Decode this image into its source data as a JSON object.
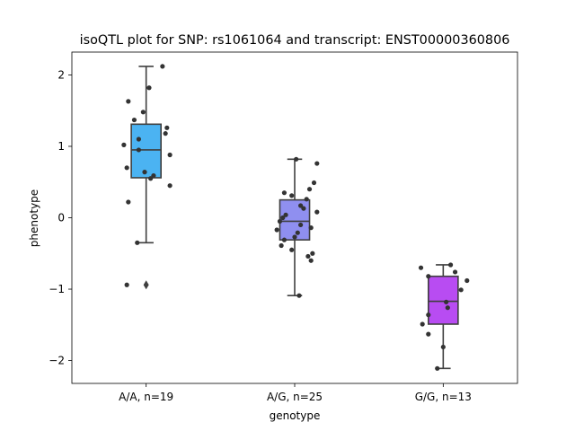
{
  "chart_data": {
    "type": "box",
    "title": "isoQTL plot for SNP: rs1061064 and transcript: ENST00000360806",
    "xlabel": "genotype",
    "ylabel": "phenotype",
    "ylim": [
      -2.32,
      2.32
    ],
    "yticks": [
      2,
      1,
      0,
      -1,
      -2
    ],
    "ytick_labels": [
      "2",
      "1",
      "0",
      "−1",
      "−2"
    ],
    "grid": false,
    "categories": [
      "A/A, n=19",
      "A/G, n=25",
      "G/G, n=13"
    ],
    "groups": [
      {
        "label": "A/A, n=19",
        "color": "#4bb3f2",
        "box": {
          "q1": 0.56,
          "median": 0.95,
          "q3": 1.31,
          "whisker_low": -0.35,
          "whisker_high": 2.12
        },
        "outliers": [
          -0.94
        ],
        "points": [
          {
            "dx": 0.11,
            "y": 2.12
          },
          {
            "dx": 0.02,
            "y": 1.82
          },
          {
            "dx": -0.12,
            "y": 1.63
          },
          {
            "dx": -0.02,
            "y": 1.48
          },
          {
            "dx": -0.08,
            "y": 1.37
          },
          {
            "dx": 0.14,
            "y": 1.26
          },
          {
            "dx": 0.13,
            "y": 1.18
          },
          {
            "dx": -0.05,
            "y": 1.1
          },
          {
            "dx": -0.15,
            "y": 1.02
          },
          {
            "dx": -0.05,
            "y": 0.95
          },
          {
            "dx": 0.16,
            "y": 0.88
          },
          {
            "dx": -0.13,
            "y": 0.7
          },
          {
            "dx": -0.01,
            "y": 0.64
          },
          {
            "dx": 0.05,
            "y": 0.59
          },
          {
            "dx": 0.03,
            "y": 0.55
          },
          {
            "dx": 0.16,
            "y": 0.45
          },
          {
            "dx": -0.12,
            "y": 0.22
          },
          {
            "dx": -0.06,
            "y": -0.35
          },
          {
            "dx": -0.13,
            "y": -0.94
          }
        ]
      },
      {
        "label": "A/G, n=25",
        "color": "#8f8ff0",
        "box": {
          "q1": -0.31,
          "median": -0.05,
          "q3": 0.25,
          "whisker_low": -1.09,
          "whisker_high": 0.82
        },
        "outliers": [],
        "points": [
          {
            "dx": 0.01,
            "y": 0.82
          },
          {
            "dx": 0.15,
            "y": 0.76
          },
          {
            "dx": 0.13,
            "y": 0.49
          },
          {
            "dx": 0.1,
            "y": 0.4
          },
          {
            "dx": -0.07,
            "y": 0.35
          },
          {
            "dx": -0.02,
            "y": 0.31
          },
          {
            "dx": 0.08,
            "y": 0.26
          },
          {
            "dx": 0.04,
            "y": 0.17
          },
          {
            "dx": 0.06,
            "y": 0.13
          },
          {
            "dx": 0.15,
            "y": 0.08
          },
          {
            "dx": -0.06,
            "y": 0.04
          },
          {
            "dx": -0.08,
            "y": 0.0
          },
          {
            "dx": -0.1,
            "y": -0.05
          },
          {
            "dx": 0.04,
            "y": -0.1
          },
          {
            "dx": -0.12,
            "y": -0.17
          },
          {
            "dx": 0.11,
            "y": -0.14
          },
          {
            "dx": 0.02,
            "y": -0.21
          },
          {
            "dx": 0.0,
            "y": -0.27
          },
          {
            "dx": -0.07,
            "y": -0.31
          },
          {
            "dx": -0.09,
            "y": -0.39
          },
          {
            "dx": -0.02,
            "y": -0.45
          },
          {
            "dx": 0.12,
            "y": -0.5
          },
          {
            "dx": 0.09,
            "y": -0.54
          },
          {
            "dx": 0.11,
            "y": -0.6
          },
          {
            "dx": 0.03,
            "y": -1.09
          }
        ]
      },
      {
        "label": "G/G, n=13",
        "color": "#b84cf2",
        "box": {
          "q1": -1.49,
          "median": -1.17,
          "q3": -0.82,
          "whisker_low": -2.11,
          "whisker_high": -0.66
        },
        "outliers": [],
        "points": [
          {
            "dx": 0.05,
            "y": -0.66
          },
          {
            "dx": -0.15,
            "y": -0.7
          },
          {
            "dx": 0.08,
            "y": -0.76
          },
          {
            "dx": -0.1,
            "y": -0.82
          },
          {
            "dx": 0.16,
            "y": -0.88
          },
          {
            "dx": 0.12,
            "y": -1.01
          },
          {
            "dx": 0.02,
            "y": -1.18
          },
          {
            "dx": 0.03,
            "y": -1.26
          },
          {
            "dx": -0.1,
            "y": -1.36
          },
          {
            "dx": -0.14,
            "y": -1.49
          },
          {
            "dx": -0.1,
            "y": -1.63
          },
          {
            "dx": 0.0,
            "y": -1.81
          },
          {
            "dx": -0.04,
            "y": -2.11
          }
        ]
      }
    ]
  }
}
